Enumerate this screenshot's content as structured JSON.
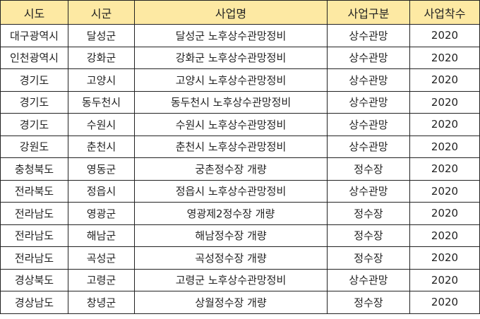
{
  "table": {
    "headers": [
      "시도",
      "시군",
      "사업명",
      "사업구분",
      "사업착수"
    ],
    "header_bg": "#fde9a3",
    "rows": [
      [
        "대구광역시",
        "달성군",
        "달성군 노후상수관망정비",
        "상수관망",
        "2020"
      ],
      [
        "인천광역시",
        "강화군",
        "강화군 노후상수관망정비",
        "상수관망",
        "2020"
      ],
      [
        "경기도",
        "고양시",
        "고양시 노후상수관망정비",
        "상수관망",
        "2020"
      ],
      [
        "경기도",
        "동두천시",
        "동두천시 노후상수관망정비",
        "상수관망",
        "2020"
      ],
      [
        "경기도",
        "수원시",
        "수원시 노후상수관망정비",
        "상수관망",
        "2020"
      ],
      [
        "강원도",
        "춘천시",
        "춘천시 노후상수관망정비",
        "상수관망",
        "2020"
      ],
      [
        "충청북도",
        "영동군",
        "궁촌정수장 개량",
        "정수장",
        "2020"
      ],
      [
        "전라북도",
        "정읍시",
        "정읍시 노후상수관망정비",
        "상수관망",
        "2020"
      ],
      [
        "전라남도",
        "영광군",
        "영광제2정수장 개량",
        "정수장",
        "2020"
      ],
      [
        "전라남도",
        "해남군",
        "해남정수장 개량",
        "정수장",
        "2020"
      ],
      [
        "전라남도",
        "곡성군",
        "곡성정수장 개량",
        "정수장",
        "2020"
      ],
      [
        "경상북도",
        "고령군",
        "고령군 노후상수관망정비",
        "상수관망",
        "2020"
      ],
      [
        "경상남도",
        "창녕군",
        "상월정수장 개량",
        "정수장",
        "2020"
      ]
    ]
  }
}
